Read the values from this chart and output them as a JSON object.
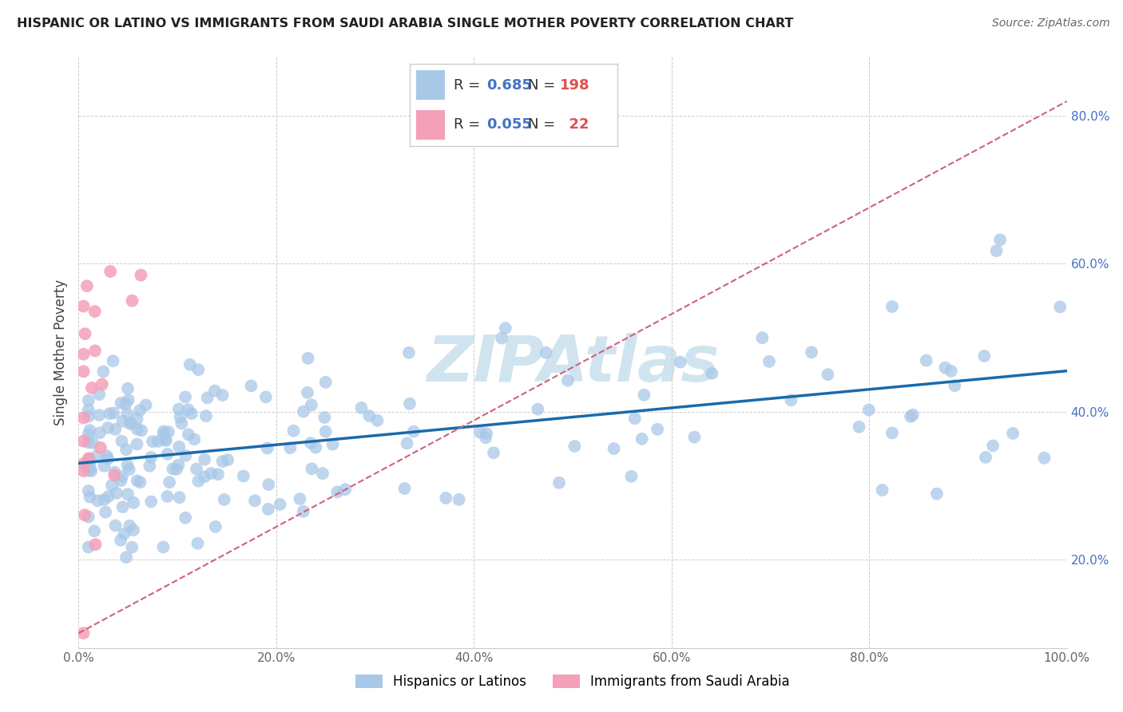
{
  "title": "HISPANIC OR LATINO VS IMMIGRANTS FROM SAUDI ARABIA SINGLE MOTHER POVERTY CORRELATION CHART",
  "source": "Source: ZipAtlas.com",
  "ylabel": "Single Mother Poverty",
  "R_blue": 0.685,
  "N_blue": 198,
  "R_pink": 0.055,
  "N_pink": 22,
  "blue_color": "#a8c8e8",
  "blue_line_color": "#1a6aab",
  "pink_color": "#f4a0b8",
  "pink_line_color": "#d06080",
  "watermark": "ZIPAtlas",
  "watermark_color": "#d0e4f0",
  "background_color": "#ffffff",
  "grid_color": "#cccccc",
  "xlim": [
    0.0,
    1.0
  ],
  "ylim": [
    0.08,
    0.88
  ],
  "xticks": [
    0.0,
    0.2,
    0.4,
    0.6,
    0.8,
    1.0
  ],
  "xtick_labels": [
    "0.0%",
    "20.0%",
    "40.0%",
    "60.0%",
    "80.0%",
    "100.0%"
  ],
  "yticks": [
    0.2,
    0.4,
    0.6,
    0.8
  ],
  "ytick_labels": [
    "20.0%",
    "40.0%",
    "60.0%",
    "80.0%"
  ],
  "blue_line_x0": 0.0,
  "blue_line_y0": 0.33,
  "blue_line_x1": 1.0,
  "blue_line_y1": 0.455,
  "pink_line_x0": 0.0,
  "pink_line_x1": 1.0,
  "pink_line_y0": 0.1,
  "pink_line_y1": 0.82,
  "legend_label_blue": "Hispanics or Latinos",
  "legend_label_pink": "Immigrants from Saudi Arabia"
}
